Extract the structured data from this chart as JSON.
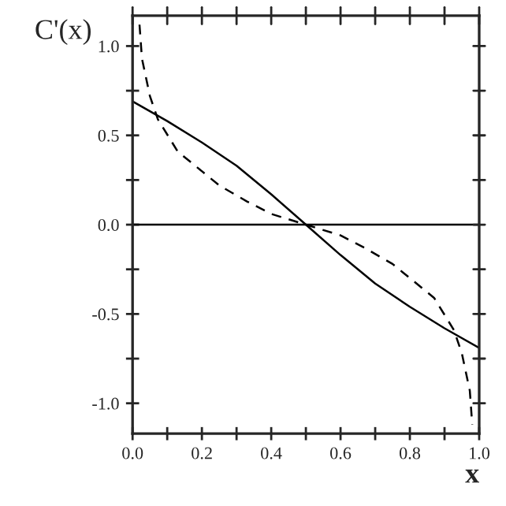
{
  "chart_data": {
    "type": "line",
    "xlabel": "x",
    "ylabel": "C'(x)",
    "xlim": [
      0,
      1
    ],
    "ylim": [
      -1.17,
      1.17
    ],
    "xticks": [
      {
        "value": 0,
        "label": "0.0"
      },
      {
        "value": 0.1,
        "label": null
      },
      {
        "value": 0.2,
        "label": "0.2"
      },
      {
        "value": 0.3,
        "label": null
      },
      {
        "value": 0.4,
        "label": "0.4"
      },
      {
        "value": 0.5,
        "label": null
      },
      {
        "value": 0.6,
        "label": "0.6"
      },
      {
        "value": 0.7,
        "label": null
      },
      {
        "value": 0.8,
        "label": "0.8"
      },
      {
        "value": 0.9,
        "label": null
      },
      {
        "value": 1,
        "label": "1.0"
      }
    ],
    "yticks": [
      {
        "value": -1,
        "label": "-1.0"
      },
      {
        "value": -0.75,
        "label": null
      },
      {
        "value": -0.5,
        "label": "-0.5"
      },
      {
        "value": -0.25,
        "label": null
      },
      {
        "value": 0,
        "label": "0.0"
      },
      {
        "value": 0.25,
        "label": null
      },
      {
        "value": 0.5,
        "label": "0.5"
      },
      {
        "value": 0.75,
        "label": null
      },
      {
        "value": 1,
        "label": "1.0"
      }
    ],
    "grid": false,
    "legend": false,
    "marker": "none",
    "ref_lines": [
      {
        "axis": "y",
        "value": 0,
        "color": "#000000",
        "line_style": "solid"
      }
    ],
    "series": [
      {
        "color": "#000000",
        "line_style": "solid",
        "x": [
          0,
          0.1,
          0.2,
          0.3,
          0.4,
          0.5,
          0.6,
          0.7,
          0.8,
          0.9,
          1.0
        ],
        "values": [
          0.69,
          0.58,
          0.46,
          0.33,
          0.17,
          0.0,
          -0.17,
          -0.33,
          -0.46,
          -0.58,
          -0.69
        ]
      },
      {
        "color": "#000000",
        "line_style": "dashed",
        "x": [
          0.02,
          0.027,
          0.05,
          0.073,
          0.13,
          0.25,
          0.33,
          0.4,
          0.5,
          0.6,
          0.67,
          0.75,
          0.87,
          0.927,
          0.95,
          0.973,
          0.98
        ],
        "values": [
          1.12,
          0.93,
          0.72,
          0.59,
          0.41,
          0.22,
          0.13,
          0.06,
          0.0,
          -0.06,
          -0.13,
          -0.22,
          -0.41,
          -0.59,
          -0.72,
          -0.93,
          -1.12
        ]
      }
    ]
  }
}
